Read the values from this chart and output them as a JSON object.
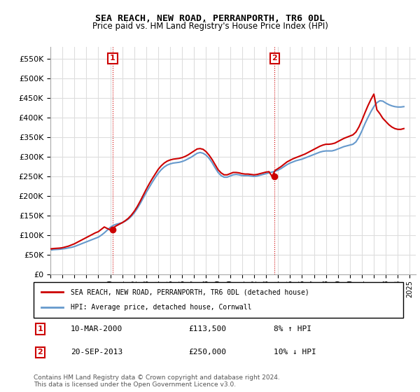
{
  "title": "SEA REACH, NEW ROAD, PERRANPORTH, TR6 0DL",
  "subtitle": "Price paid vs. HM Land Registry's House Price Index (HPI)",
  "ylabel_values": [
    0,
    50000,
    100000,
    150000,
    200000,
    250000,
    300000,
    350000,
    400000,
    450000,
    500000,
    550000
  ],
  "ylim": [
    0,
    580000
  ],
  "xlim_start": 1995.0,
  "xlim_end": 2025.5,
  "legend_label_red": "SEA REACH, NEW ROAD, PERRANPORTH, TR6 0DL (detached house)",
  "legend_label_blue": "HPI: Average price, detached house, Cornwall",
  "marker1_label": "1",
  "marker1_date": "10-MAR-2000",
  "marker1_price": "£113,500",
  "marker1_hpi": "8% ↑ HPI",
  "marker1_x": 2000.2,
  "marker1_y": 113500,
  "marker2_label": "2",
  "marker2_date": "20-SEP-2013",
  "marker2_price": "£250,000",
  "marker2_hpi": "10% ↓ HPI",
  "marker2_x": 2013.72,
  "marker2_y": 250000,
  "copyright_text": "Contains HM Land Registry data © Crown copyright and database right 2024.\nThis data is licensed under the Open Government Licence v3.0.",
  "red_color": "#cc0000",
  "blue_color": "#6699cc",
  "grid_color": "#dddddd",
  "vline_color": "#cc0000",
  "background_color": "#ffffff",
  "hpi_x": [
    1995.0,
    1995.25,
    1995.5,
    1995.75,
    1996.0,
    1996.25,
    1996.5,
    1996.75,
    1997.0,
    1997.25,
    1997.5,
    1997.75,
    1998.0,
    1998.25,
    1998.5,
    1998.75,
    1999.0,
    1999.25,
    1999.5,
    1999.75,
    2000.0,
    2000.25,
    2000.5,
    2000.75,
    2001.0,
    2001.25,
    2001.5,
    2001.75,
    2002.0,
    2002.25,
    2002.5,
    2002.75,
    2003.0,
    2003.25,
    2003.5,
    2003.75,
    2004.0,
    2004.25,
    2004.5,
    2004.75,
    2005.0,
    2005.25,
    2005.5,
    2005.75,
    2006.0,
    2006.25,
    2006.5,
    2006.75,
    2007.0,
    2007.25,
    2007.5,
    2007.75,
    2008.0,
    2008.25,
    2008.5,
    2008.75,
    2009.0,
    2009.25,
    2009.5,
    2009.75,
    2010.0,
    2010.25,
    2010.5,
    2010.75,
    2011.0,
    2011.25,
    2011.5,
    2011.75,
    2012.0,
    2012.25,
    2012.5,
    2012.75,
    2013.0,
    2013.25,
    2013.5,
    2013.75,
    2014.0,
    2014.25,
    2014.5,
    2014.75,
    2015.0,
    2015.25,
    2015.5,
    2015.75,
    2016.0,
    2016.25,
    2016.5,
    2016.75,
    2017.0,
    2017.25,
    2017.5,
    2017.75,
    2018.0,
    2018.25,
    2018.5,
    2018.75,
    2019.0,
    2019.25,
    2019.5,
    2019.75,
    2020.0,
    2020.25,
    2020.5,
    2020.75,
    2021.0,
    2021.25,
    2021.5,
    2021.75,
    2022.0,
    2022.25,
    2022.5,
    2022.75,
    2023.0,
    2023.25,
    2023.5,
    2023.75,
    2024.0,
    2024.25,
    2024.5
  ],
  "hpi_y": [
    62000,
    63000,
    63500,
    64000,
    65000,
    66000,
    67500,
    69000,
    71000,
    74000,
    77000,
    80000,
    83000,
    86000,
    89000,
    92000,
    95000,
    100000,
    106000,
    113000,
    120000,
    125000,
    128000,
    130000,
    132000,
    136000,
    141000,
    148000,
    157000,
    168000,
    181000,
    195000,
    209000,
    222000,
    235000,
    247000,
    258000,
    267000,
    274000,
    279000,
    282000,
    284000,
    285000,
    286000,
    288000,
    291000,
    295000,
    299000,
    304000,
    309000,
    311000,
    309000,
    304000,
    296000,
    285000,
    272000,
    260000,
    252000,
    248000,
    248000,
    251000,
    254000,
    255000,
    254000,
    252000,
    252000,
    252000,
    251000,
    250000,
    251000,
    253000,
    255000,
    257000,
    259000,
    261000,
    263000,
    266000,
    270000,
    275000,
    280000,
    284000,
    287000,
    290000,
    292000,
    294000,
    297000,
    300000,
    303000,
    306000,
    309000,
    312000,
    314000,
    315000,
    315000,
    315000,
    317000,
    320000,
    323000,
    326000,
    328000,
    330000,
    332000,
    338000,
    350000,
    366000,
    384000,
    400000,
    415000,
    428000,
    438000,
    443000,
    442000,
    437000,
    433000,
    430000,
    428000,
    427000,
    427000,
    428000
  ],
  "red_x": [
    1995.0,
    1995.25,
    1995.5,
    1995.75,
    1996.0,
    1996.25,
    1996.5,
    1996.75,
    1997.0,
    1997.25,
    1997.5,
    1997.75,
    1998.0,
    1998.25,
    1998.5,
    1998.75,
    1999.0,
    1999.25,
    1999.5,
    1999.75,
    2000.0,
    2000.25,
    2000.5,
    2000.75,
    2001.0,
    2001.25,
    2001.5,
    2001.75,
    2002.0,
    2002.25,
    2002.5,
    2002.75,
    2003.0,
    2003.25,
    2003.5,
    2003.75,
    2004.0,
    2004.25,
    2004.5,
    2004.75,
    2005.0,
    2005.25,
    2005.5,
    2005.75,
    2006.0,
    2006.25,
    2006.5,
    2006.75,
    2007.0,
    2007.25,
    2007.5,
    2007.75,
    2008.0,
    2008.25,
    2008.5,
    2008.75,
    2009.0,
    2009.25,
    2009.5,
    2009.75,
    2010.0,
    2010.25,
    2010.5,
    2010.75,
    2011.0,
    2011.25,
    2011.5,
    2011.75,
    2012.0,
    2012.25,
    2012.5,
    2012.75,
    2013.0,
    2013.25,
    2013.5,
    2013.75,
    2014.0,
    2014.25,
    2014.5,
    2014.75,
    2015.0,
    2015.25,
    2015.5,
    2015.75,
    2016.0,
    2016.25,
    2016.5,
    2016.75,
    2017.0,
    2017.25,
    2017.5,
    2017.75,
    2018.0,
    2018.25,
    2018.5,
    2018.75,
    2019.0,
    2019.25,
    2019.5,
    2019.75,
    2020.0,
    2020.25,
    2020.5,
    2020.75,
    2021.0,
    2021.25,
    2021.5,
    2021.75,
    2022.0,
    2022.25,
    2022.5,
    2022.75,
    2023.0,
    2023.25,
    2023.5,
    2023.75,
    2024.0,
    2024.25,
    2024.5
  ],
  "red_y": [
    65000,
    66000,
    66500,
    67000,
    68000,
    70000,
    72000,
    75000,
    78000,
    82000,
    86000,
    90000,
    94000,
    98000,
    102000,
    106000,
    109000,
    115000,
    121000,
    117000,
    113500,
    119000,
    124000,
    128000,
    132000,
    137000,
    143000,
    151000,
    161000,
    173000,
    187000,
    202000,
    217000,
    231000,
    244000,
    256000,
    268000,
    277000,
    284000,
    289000,
    292000,
    294000,
    295000,
    296000,
    298000,
    301000,
    305000,
    310000,
    315000,
    320000,
    321000,
    319000,
    313000,
    304000,
    293000,
    280000,
    267000,
    259000,
    254000,
    254000,
    257000,
    260000,
    260000,
    259000,
    257000,
    256000,
    256000,
    255000,
    254000,
    255000,
    257000,
    259000,
    261000,
    262000,
    250000,
    265000,
    270000,
    275000,
    281000,
    287000,
    291000,
    295000,
    298000,
    301000,
    304000,
    307000,
    311000,
    315000,
    319000,
    323000,
    327000,
    330000,
    332000,
    332000,
    333000,
    335000,
    339000,
    343000,
    347000,
    350000,
    353000,
    356000,
    363000,
    376000,
    393000,
    412000,
    430000,
    446000,
    460000,
    420000,
    410000,
    398000,
    390000,
    382000,
    376000,
    372000,
    370000,
    370000,
    372000
  ]
}
